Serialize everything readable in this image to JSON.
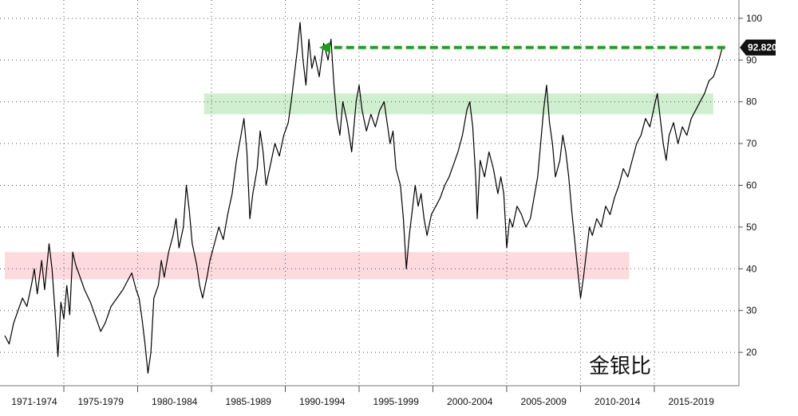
{
  "chart_data": {
    "type": "line",
    "title": "",
    "xlabel": "",
    "ylabel": "",
    "ylim": [
      12,
      104
    ],
    "y_ticks": [
      20,
      30,
      40,
      50,
      60,
      70,
      80,
      90,
      100
    ],
    "x_period_labels": [
      "1971-1974",
      "1975-1979",
      "1980-1984",
      "1985-1989",
      "1990-1994",
      "1995-1999",
      "2000-2004",
      "2005-2009",
      "2010-2014",
      "2015-2019"
    ],
    "annotation_text": "金银比",
    "last_value_label": "92.8207",
    "grid": true,
    "colors": {
      "line": "#000000",
      "green_band": "#c8ecc8",
      "red_band": "#fbd4d8",
      "arrow": "#1e9e1e",
      "value_badge": "#111111"
    },
    "bands": [
      {
        "name": "green",
        "x_start": 1984.5,
        "x_end": 2019.0,
        "y_low": 77,
        "y_high": 82
      },
      {
        "name": "red",
        "x_start": 1971.0,
        "x_end": 2013.3,
        "y_low": 37.5,
        "y_high": 44
      }
    ],
    "arrow": {
      "x_from": 2019.8,
      "x_to": 1992.3,
      "y": 93
    },
    "series": [
      {
        "points": [
          [
            1971.0,
            24
          ],
          [
            1971.3,
            22
          ],
          [
            1971.6,
            27
          ],
          [
            1971.9,
            30
          ],
          [
            1972.2,
            33
          ],
          [
            1972.5,
            31
          ],
          [
            1972.8,
            36
          ],
          [
            1973.0,
            40
          ],
          [
            1973.2,
            34
          ],
          [
            1973.5,
            42
          ],
          [
            1973.7,
            35
          ],
          [
            1974.0,
            46
          ],
          [
            1974.2,
            40
          ],
          [
            1974.4,
            30
          ],
          [
            1974.6,
            19
          ],
          [
            1974.8,
            32
          ],
          [
            1975.0,
            28
          ],
          [
            1975.2,
            36
          ],
          [
            1975.4,
            29
          ],
          [
            1975.6,
            44
          ],
          [
            1975.8,
            41
          ],
          [
            1976.0,
            39
          ],
          [
            1976.4,
            35
          ],
          [
            1976.8,
            32
          ],
          [
            1977.2,
            28
          ],
          [
            1977.5,
            25
          ],
          [
            1977.8,
            27
          ],
          [
            1978.2,
            31
          ],
          [
            1978.6,
            33
          ],
          [
            1979.0,
            35
          ],
          [
            1979.3,
            37
          ],
          [
            1979.6,
            39
          ],
          [
            1979.9,
            35
          ],
          [
            1980.1,
            33
          ],
          [
            1980.3,
            28
          ],
          [
            1980.5,
            22
          ],
          [
            1980.7,
            15
          ],
          [
            1980.9,
            20
          ],
          [
            1981.1,
            33
          ],
          [
            1981.4,
            36
          ],
          [
            1981.6,
            42
          ],
          [
            1981.8,
            38
          ],
          [
            1982.1,
            44
          ],
          [
            1982.4,
            48
          ],
          [
            1982.6,
            52
          ],
          [
            1982.8,
            45
          ],
          [
            1983.1,
            50
          ],
          [
            1983.3,
            60
          ],
          [
            1983.5,
            54
          ],
          [
            1983.7,
            46
          ],
          [
            1984.0,
            41
          ],
          [
            1984.2,
            36
          ],
          [
            1984.4,
            33
          ],
          [
            1984.7,
            38
          ],
          [
            1984.9,
            42
          ],
          [
            1985.2,
            46
          ],
          [
            1985.5,
            50
          ],
          [
            1985.8,
            47
          ],
          [
            1986.1,
            53
          ],
          [
            1986.4,
            58
          ],
          [
            1986.7,
            66
          ],
          [
            1987.0,
            72
          ],
          [
            1987.2,
            76
          ],
          [
            1987.4,
            68
          ],
          [
            1987.6,
            52
          ],
          [
            1987.8,
            58
          ],
          [
            1988.1,
            64
          ],
          [
            1988.3,
            73
          ],
          [
            1988.5,
            68
          ],
          [
            1988.7,
            60
          ],
          [
            1989.0,
            65
          ],
          [
            1989.3,
            70
          ],
          [
            1989.6,
            67
          ],
          [
            1989.9,
            72
          ],
          [
            1990.2,
            75
          ],
          [
            1990.4,
            80
          ],
          [
            1990.6,
            86
          ],
          [
            1990.8,
            92
          ],
          [
            1991.0,
            99
          ],
          [
            1991.2,
            90
          ],
          [
            1991.4,
            84
          ],
          [
            1991.6,
            95
          ],
          [
            1991.8,
            88
          ],
          [
            1992.0,
            91
          ],
          [
            1992.3,
            86
          ],
          [
            1992.6,
            94
          ],
          [
            1992.9,
            90
          ],
          [
            1993.1,
            95
          ],
          [
            1993.3,
            84
          ],
          [
            1993.5,
            76
          ],
          [
            1993.7,
            72
          ],
          [
            1993.9,
            80
          ],
          [
            1994.2,
            75
          ],
          [
            1994.5,
            68
          ],
          [
            1994.8,
            80
          ],
          [
            1995.0,
            84
          ],
          [
            1995.2,
            78
          ],
          [
            1995.5,
            73
          ],
          [
            1995.8,
            77
          ],
          [
            1996.1,
            74
          ],
          [
            1996.4,
            78
          ],
          [
            1996.7,
            80
          ],
          [
            1996.9,
            75
          ],
          [
            1997.1,
            70
          ],
          [
            1997.3,
            73
          ],
          [
            1997.5,
            64
          ],
          [
            1997.8,
            60
          ],
          [
            1998.0,
            52
          ],
          [
            1998.2,
            40
          ],
          [
            1998.4,
            48
          ],
          [
            1998.6,
            54
          ],
          [
            1998.8,
            60
          ],
          [
            1999.0,
            55
          ],
          [
            1999.2,
            58
          ],
          [
            1999.4,
            52
          ],
          [
            1999.6,
            48
          ],
          [
            1999.9,
            53
          ],
          [
            2000.2,
            55
          ],
          [
            2000.5,
            57
          ],
          [
            2000.8,
            60
          ],
          [
            2001.1,
            62
          ],
          [
            2001.4,
            65
          ],
          [
            2001.7,
            68
          ],
          [
            2002.0,
            72
          ],
          [
            2002.3,
            78
          ],
          [
            2002.5,
            80
          ],
          [
            2002.7,
            74
          ],
          [
            2002.9,
            62
          ],
          [
            2003.0,
            52
          ],
          [
            2003.2,
            66
          ],
          [
            2003.5,
            62
          ],
          [
            2003.8,
            68
          ],
          [
            2004.1,
            64
          ],
          [
            2004.4,
            58
          ],
          [
            2004.6,
            62
          ],
          [
            2004.8,
            58
          ],
          [
            2005.0,
            45
          ],
          [
            2005.2,
            52
          ],
          [
            2005.4,
            50
          ],
          [
            2005.7,
            55
          ],
          [
            2006.0,
            53
          ],
          [
            2006.3,
            50
          ],
          [
            2006.6,
            52
          ],
          [
            2006.9,
            58
          ],
          [
            2007.1,
            62
          ],
          [
            2007.3,
            70
          ],
          [
            2007.5,
            78
          ],
          [
            2007.7,
            84
          ],
          [
            2007.9,
            75
          ],
          [
            2008.1,
            70
          ],
          [
            2008.3,
            62
          ],
          [
            2008.6,
            66
          ],
          [
            2008.8,
            72
          ],
          [
            2009.0,
            68
          ],
          [
            2009.2,
            62
          ],
          [
            2009.4,
            54
          ],
          [
            2009.6,
            47
          ],
          [
            2009.8,
            40
          ],
          [
            2010.0,
            33
          ],
          [
            2010.2,
            38
          ],
          [
            2010.4,
            44
          ],
          [
            2010.6,
            50
          ],
          [
            2010.8,
            48
          ],
          [
            2011.1,
            52
          ],
          [
            2011.4,
            50
          ],
          [
            2011.7,
            55
          ],
          [
            2012.0,
            53
          ],
          [
            2012.3,
            57
          ],
          [
            2012.6,
            60
          ],
          [
            2012.9,
            64
          ],
          [
            2013.2,
            62
          ],
          [
            2013.5,
            66
          ],
          [
            2013.8,
            70
          ],
          [
            2014.1,
            72
          ],
          [
            2014.4,
            76
          ],
          [
            2014.7,
            74
          ],
          [
            2015.0,
            79
          ],
          [
            2015.2,
            82
          ],
          [
            2015.4,
            76
          ],
          [
            2015.6,
            70
          ],
          [
            2015.8,
            66
          ],
          [
            2016.0,
            72
          ],
          [
            2016.3,
            75
          ],
          [
            2016.6,
            70
          ],
          [
            2016.9,
            74
          ],
          [
            2017.2,
            72
          ],
          [
            2017.5,
            76
          ],
          [
            2017.8,
            78
          ],
          [
            2018.1,
            80
          ],
          [
            2018.4,
            82
          ],
          [
            2018.7,
            85
          ],
          [
            2019.0,
            86
          ],
          [
            2019.3,
            89
          ],
          [
            2019.6,
            93
          ]
        ]
      }
    ]
  }
}
